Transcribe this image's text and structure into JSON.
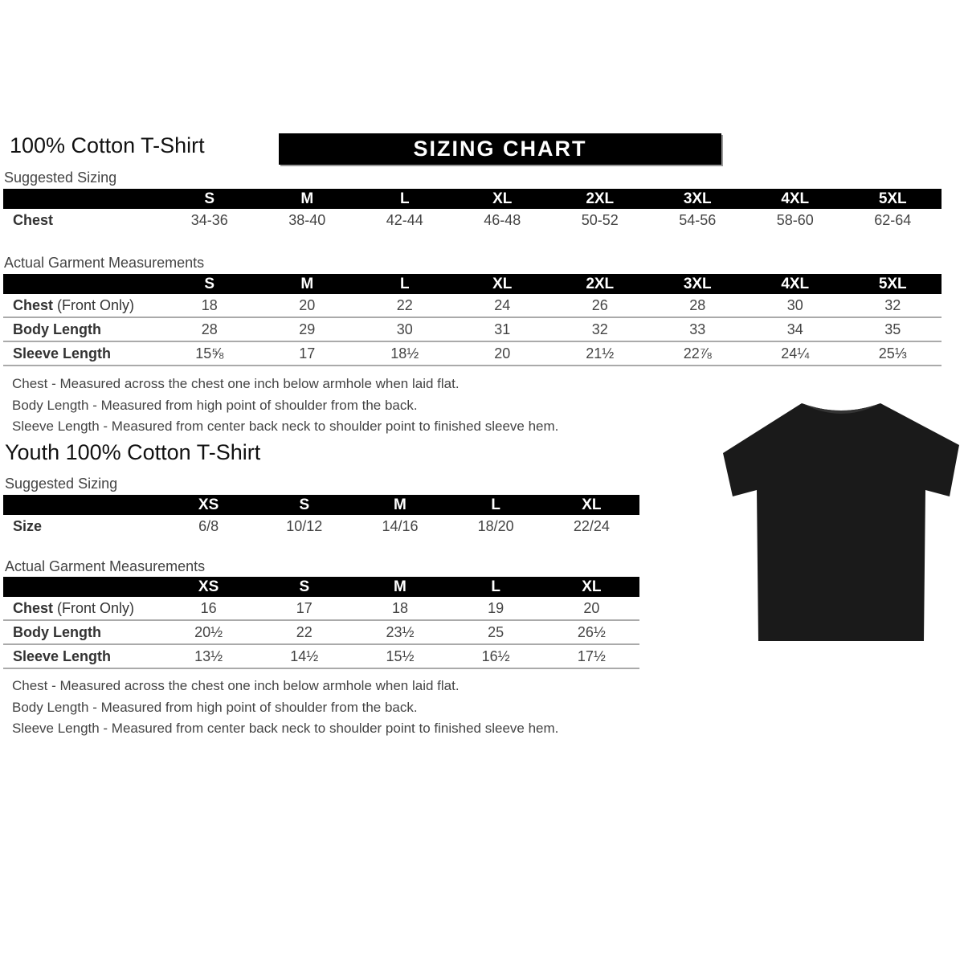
{
  "adult": {
    "title": "100% Cotton T-Shirt",
    "banner": "SIZING CHART",
    "suggested_label": "Suggested Sizing",
    "sizes": [
      "S",
      "M",
      "L",
      "XL",
      "2XL",
      "3XL",
      "4XL",
      "5XL"
    ],
    "suggested_rows": [
      {
        "label": "Chest",
        "values": [
          "34-36",
          "38-40",
          "42-44",
          "46-48",
          "50-52",
          "54-56",
          "58-60",
          "62-64"
        ]
      }
    ],
    "actual_label": "Actual Garment Measurements",
    "actual_rows": [
      {
        "label": "Chest",
        "label_note": "(Front Only)",
        "values": [
          "18",
          "20",
          "22",
          "24",
          "26",
          "28",
          "30",
          "32"
        ]
      },
      {
        "label": "Body Length",
        "label_note": "",
        "values": [
          "28",
          "29",
          "30",
          "31",
          "32",
          "33",
          "34",
          "35"
        ]
      },
      {
        "label": "Sleeve Length",
        "label_note": "",
        "values": [
          "15⅝",
          "17",
          "18½",
          "20",
          "21½",
          "22⅞",
          "24¼",
          "25⅓"
        ]
      }
    ],
    "notes": [
      "Chest - Measured across the chest one inch below armhole when laid flat.",
      "Body Length - Measured from high point of shoulder from the back.",
      "Sleeve Length - Measured from center back neck to shoulder point to finished sleeve hem."
    ]
  },
  "youth": {
    "title": "Youth 100% Cotton T-Shirt",
    "suggested_label": "Suggested Sizing",
    "sizes": [
      "XS",
      "S",
      "M",
      "L",
      "XL"
    ],
    "suggested_rows": [
      {
        "label": "Size",
        "values": [
          "6/8",
          "10/12",
          "14/16",
          "18/20",
          "22/24"
        ]
      }
    ],
    "actual_label": "Actual Garment Measurements",
    "actual_rows": [
      {
        "label": "Chest",
        "label_note": "(Front Only)",
        "values": [
          "16",
          "17",
          "18",
          "19",
          "20"
        ]
      },
      {
        "label": "Body Length",
        "label_note": "",
        "values": [
          "20½",
          "22",
          "23½",
          "25",
          "26½"
        ]
      },
      {
        "label": "Sleeve Length",
        "label_note": "",
        "values": [
          "13½",
          "14½",
          "15½",
          "16½",
          "17½"
        ]
      }
    ],
    "notes": [
      "Chest - Measured across the chest one inch below armhole when laid flat.",
      "Body Length - Measured from high point of shoulder from the back.",
      "Sleeve Length - Measured from center back neck to shoulder point to finished sleeve hem."
    ]
  },
  "image": {
    "icon": "tshirt-icon",
    "color": "#1a1a1a"
  }
}
